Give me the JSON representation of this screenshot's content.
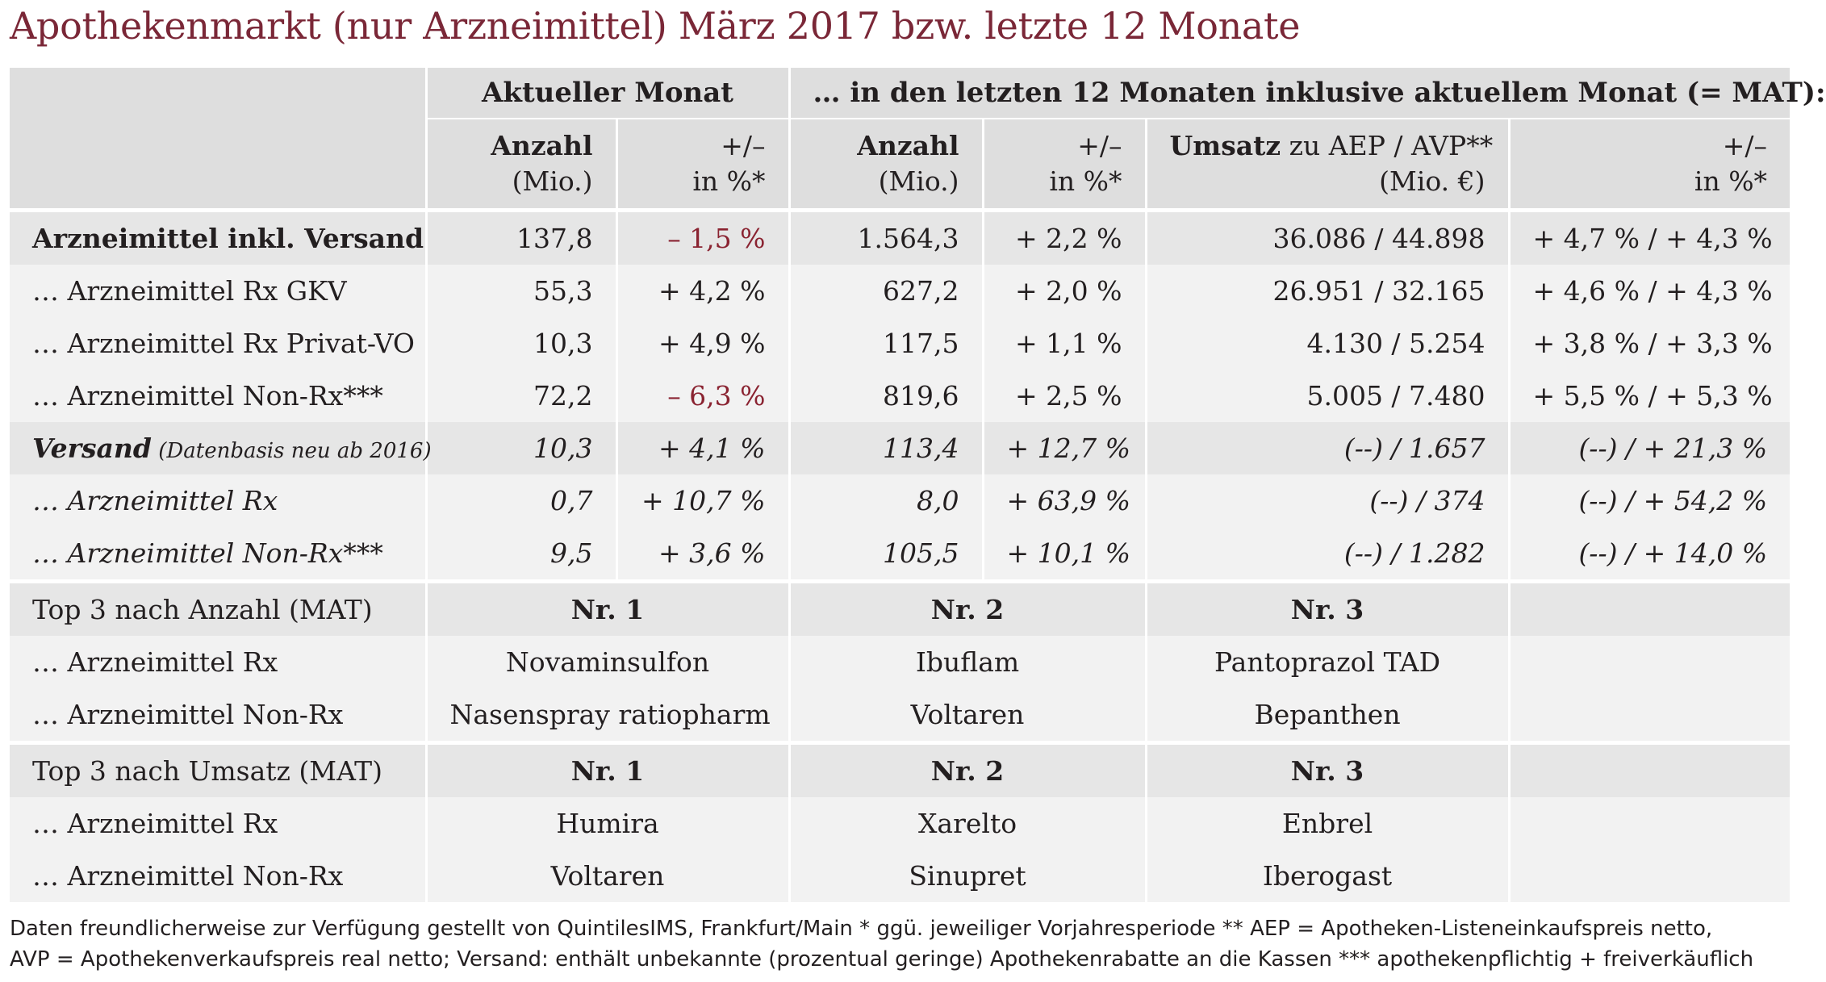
{
  "title": "Apothekenmarkt (nur Arzneimittel) März 2017 bzw. letzte 12 Monate",
  "header": {
    "group_current": "Aktueller Monat",
    "group_mat": "… in den letzten 12 Monaten inklusive aktuellem Monat (= MAT):",
    "col_anzahl": "Anzahl",
    "col_mio": "(Mio.)",
    "col_pm": "+/–",
    "col_pct": "in %*",
    "col_umsatz_bold": "Umsatz",
    "col_umsatz_rest": " zu AEP / AVP**",
    "col_mio_eur": "(Mio. €)"
  },
  "rows": [
    {
      "label": "Arzneimittel inkl. Versand",
      "anzahl": "137,8",
      "pct": "– 1,5 %",
      "mat_anzahl": "1.564,3",
      "mat_pct": "+ 2,2 %",
      "umsatz": "36.086 / 44.898",
      "umsatz_pct": "+ 4,7 % / + 4,3 %"
    },
    {
      "label": "… Arzneimittel Rx GKV",
      "anzahl": "55,3",
      "pct": "+ 4,2 %",
      "mat_anzahl": "627,2",
      "mat_pct": "+ 2,0 %",
      "umsatz": "26.951 / 32.165",
      "umsatz_pct": "+ 4,6 % / + 4,3 %"
    },
    {
      "label": "… Arzneimittel Rx Privat-VO",
      "anzahl": "10,3",
      "pct": "+ 4,9 %",
      "mat_anzahl": "117,5",
      "mat_pct": "+ 1,1 %",
      "umsatz": "4.130 / 5.254",
      "umsatz_pct": "+ 3,8 % / + 3,3 %"
    },
    {
      "label": "… Arzneimittel Non-Rx***",
      "anzahl": "72,2",
      "pct": "– 6,3 %",
      "mat_anzahl": "819,6",
      "mat_pct": "+ 2,5 %",
      "umsatz": "5.005 / 7.480",
      "umsatz_pct": "+ 5,5 % / + 5,3 %"
    },
    {
      "label": "Versand",
      "label_note": " (Datenbasis neu ab 2016)",
      "anzahl": "10,3",
      "pct": "+ 4,1 %",
      "mat_anzahl": "113,4",
      "mat_pct": "+ 12,7 %",
      "umsatz": "(--) / 1.657",
      "umsatz_pct": "(--) / + 21,3 %"
    },
    {
      "label": "… Arzneimittel Rx",
      "anzahl": "0,7",
      "pct": "+ 10,7 %",
      "mat_anzahl": "8,0",
      "mat_pct": "+ 63,9 %",
      "umsatz": "(--) / 374",
      "umsatz_pct": "(--) / + 54,2 %"
    },
    {
      "label": "… Arzneimittel Non-Rx***",
      "anzahl": "9,5",
      "pct": "+ 3,6 %",
      "mat_anzahl": "105,5",
      "mat_pct": "+ 10,1 %",
      "umsatz": "(--) / 1.282",
      "umsatz_pct": "(--) / + 14,0 %"
    }
  ],
  "top_anzahl": {
    "title": "Top 3 nach Anzahl (MAT)",
    "nr1": "Nr. 1",
    "nr2": "Nr. 2",
    "nr3": "Nr. 3",
    "rx_label": "… Arzneimittel Rx",
    "rx": [
      "Novaminsulfon",
      "Ibuflam",
      "Pantoprazol TAD"
    ],
    "nonrx_label": "… Arzneimittel Non-Rx",
    "nonrx": [
      "Nasenspray ratiopharm",
      "Voltaren",
      "Bepanthen"
    ]
  },
  "top_umsatz": {
    "title": "Top 3 nach Umsatz (MAT)",
    "nr1": "Nr. 1",
    "nr2": "Nr. 2",
    "nr3": "Nr. 3",
    "rx_label": "… Arzneimittel Rx",
    "rx": [
      "Humira",
      "Xarelto",
      "Enbrel"
    ],
    "nonrx_label": "… Arzneimittel Non-Rx",
    "nonrx": [
      "Voltaren",
      "Sinupret",
      "Iberogast"
    ]
  },
  "footnote": {
    "line1": "Daten freundlicherweise zur Verfügung gestellt von QuintilesIMS, Frankfurt/Main   * ggü. jeweiliger Vorjahresperiode   ** AEP = Apotheken-Listeneinkaufspreis netto,",
    "line2": "AVP = Apothekenverkaufspreis real netto; Versand: enthält unbekannte (prozentual geringe) Apothekenrabatte an die Kassen   *** apothekenpflichtig + freiverkäuflich"
  },
  "colors": {
    "title": "#7a2737",
    "negative": "#8a2331",
    "header_bg": "#dedede",
    "row_dark": "#e6e6e6",
    "row_light": "#f2f2f2"
  }
}
